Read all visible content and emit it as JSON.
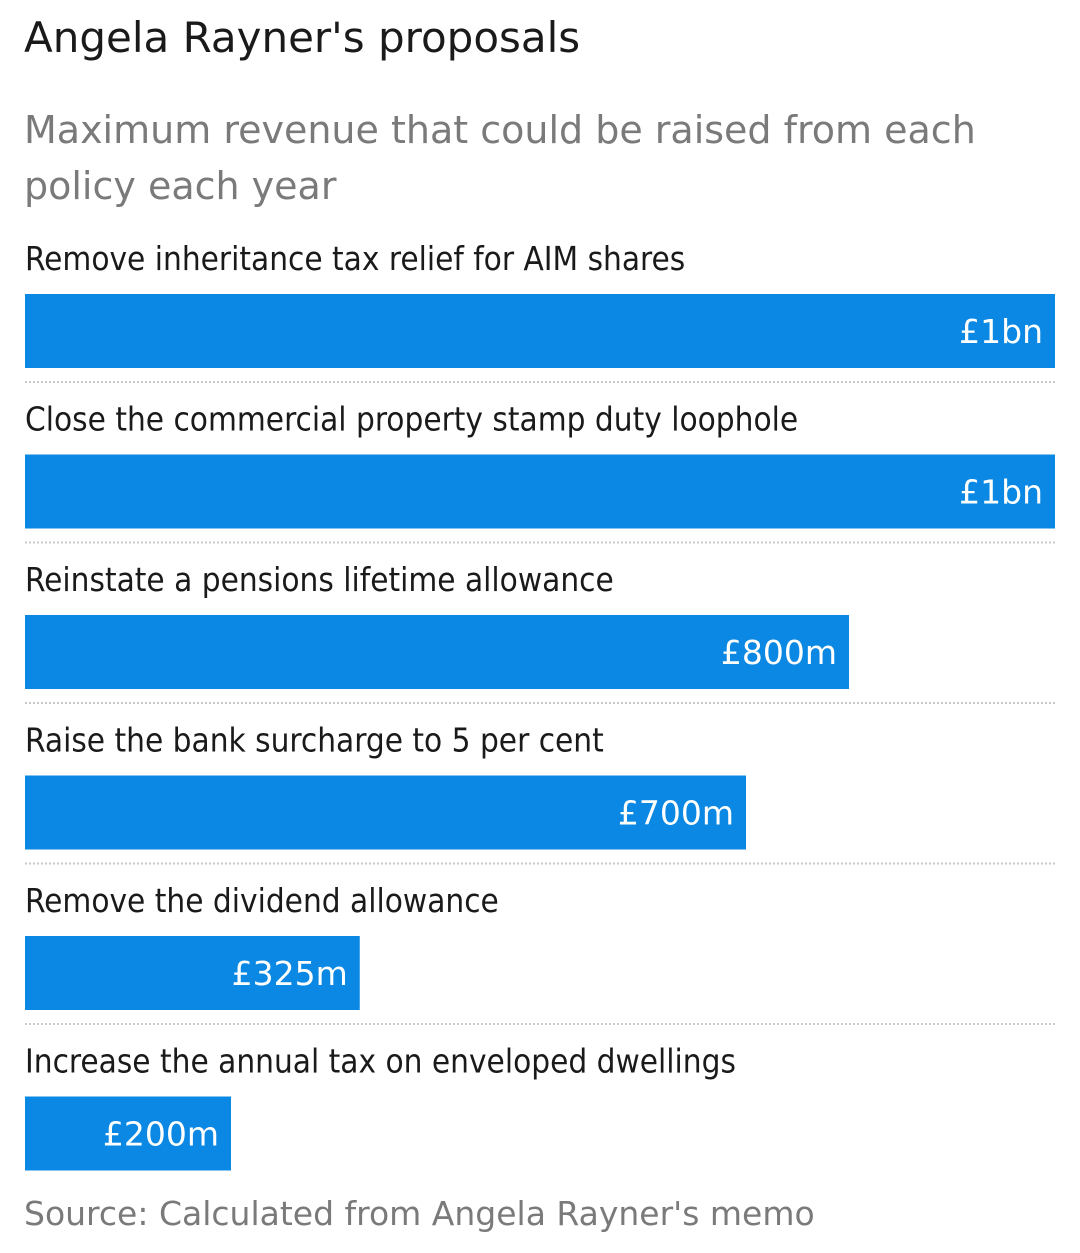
{
  "title": "Angela Rayner's proposals",
  "subtitle": "Maximum revenue that could be raised from each policy each year",
  "source": "Source: Calculated from Angela Rayner's memo",
  "colors": {
    "bar": "#0a88e3",
    "bar_label": "#ffffff",
    "divider": "#c9c9c9"
  },
  "chart_data": {
    "type": "bar",
    "orientation": "horizontal",
    "unit": "£m",
    "xlim": [
      0,
      1000
    ],
    "grid": false,
    "categories": [
      "Remove inheritance tax relief for AIM shares",
      "Close the commercial property stamp duty loophole",
      "Reinstate a pensions lifetime allowance",
      "Raise the bank surcharge to 5 per cent",
      "Remove the dividend allowance",
      "Increase the annual tax on enveloped dwellings"
    ],
    "values": [
      1000,
      1000,
      800,
      700,
      325,
      200
    ],
    "data_labels": [
      "£1bn",
      "£1bn",
      "£800m",
      "£700m",
      "£325m",
      "£200m"
    ]
  }
}
